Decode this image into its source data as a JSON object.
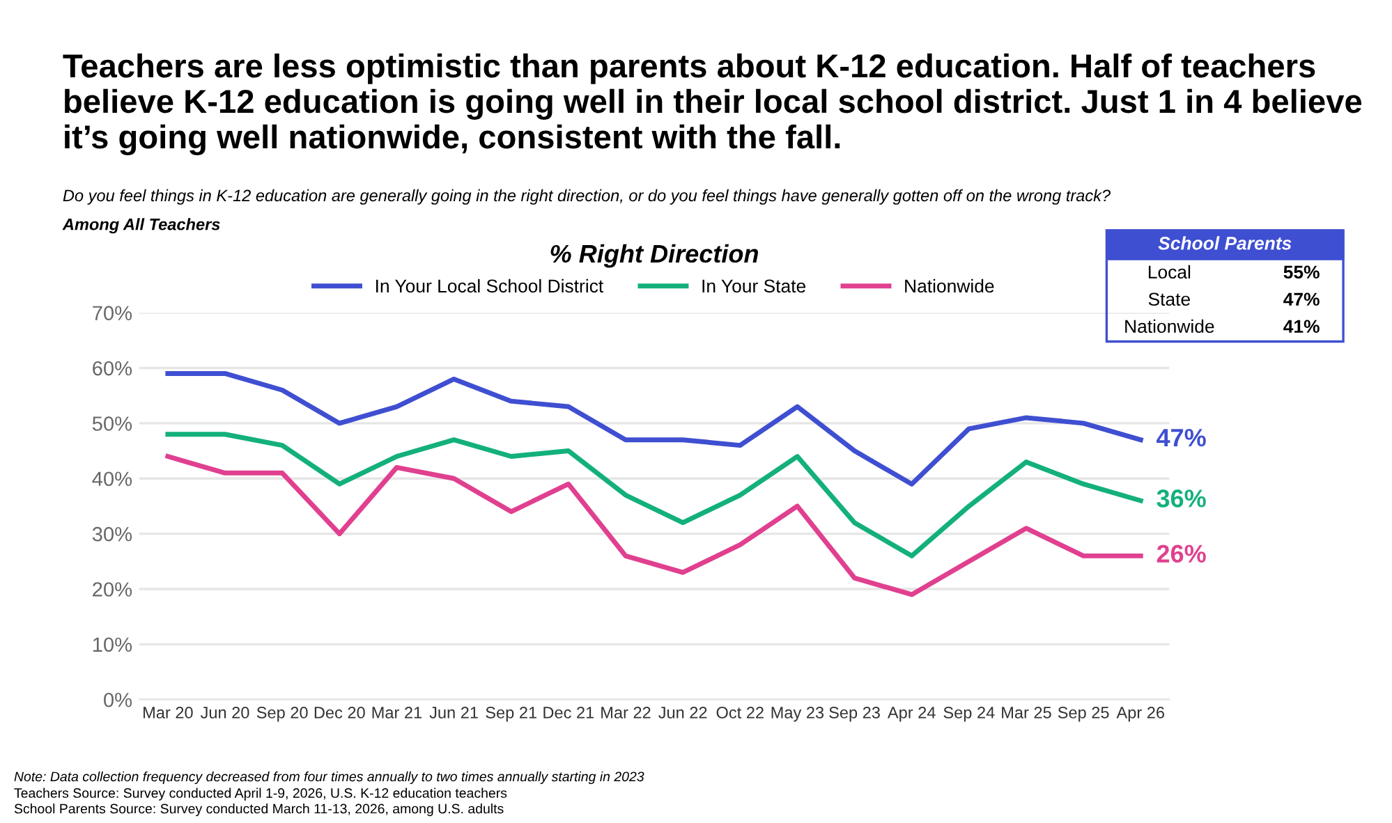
{
  "chart_data": {
    "type": "line",
    "title": "Teachers are less optimistic than parents about K-12 education. Half of teachers believe K-12 education is going well in their local school district. Just 1 in 4 believe it’s going well nationwide, consistent with the fall.",
    "subtitle": "% Right Direction",
    "annotations": [
      "Do you feel things in K-12 education are generally going in the right direction, or do you feel things have generally gotten off on the wrong track?",
      "Among All Teachers",
      "School Parents",
      "Local",
      "55%",
      "State",
      "47%",
      "Nationwide",
      "41%",
      "Note: Data collection frequency decreased from four times annually to two times annually starting in 2023",
      "Teachers Source: Survey conducted April 1-9, 2026, U.S. K-12 education teachers",
      "School Parents Source: Survey conducted March 11-13, 2026, among U.S. adults"
    ],
    "categories": [
      "Mar 20",
      "Jun 20",
      "Sep 20",
      "Dec 20",
      "Mar 21",
      "Jun 21",
      "Sep 21",
      "Dec 21",
      "Mar 22",
      "Jun 22",
      "Oct 22",
      "May 23",
      "Sep 23",
      "Apr 24",
      "Sep 24",
      "Mar 25",
      "Sep 25",
      "Apr 26"
    ],
    "series": [
      {
        "name": "In Your Local School District",
        "color": "#3f4fd1",
        "values": [
          59,
          59,
          56,
          50,
          53,
          58,
          54,
          53,
          47,
          47,
          46,
          53,
          45,
          39,
          49,
          51,
          50,
          47
        ],
        "value_labels": [
          null,
          null,
          null,
          null,
          null,
          null,
          null,
          null,
          null,
          null,
          null,
          null,
          null,
          null,
          null,
          null,
          null,
          "47%"
        ]
      },
      {
        "name": "In Your State",
        "color": "#13b07c",
        "values": [
          48,
          48,
          46,
          39,
          44,
          47,
          44,
          45,
          37,
          32,
          37,
          44,
          32,
          26,
          35,
          43,
          39,
          36
        ],
        "value_labels": [
          null,
          null,
          null,
          null,
          null,
          null,
          null,
          null,
          null,
          null,
          null,
          null,
          null,
          null,
          null,
          null,
          null,
          "36%"
        ]
      },
      {
        "name": "Nationwide",
        "color": "#e0408f",
        "values": [
          44,
          41,
          41,
          30,
          42,
          40,
          34,
          39,
          26,
          23,
          28,
          35,
          22,
          19,
          25,
          31,
          26,
          26
        ],
        "value_labels": [
          null,
          null,
          null,
          null,
          null,
          null,
          null,
          null,
          null,
          null,
          null,
          null,
          null,
          null,
          null,
          null,
          null,
          "26%"
        ]
      }
    ],
    "ylim": [
      0,
      70
    ],
    "yticks": [
      {
        "value": 0,
        "label": "0%"
      },
      {
        "value": 10,
        "label": "10%"
      },
      {
        "value": 20,
        "label": "20%"
      },
      {
        "value": 30,
        "label": "30%"
      },
      {
        "value": 40,
        "label": "40%"
      },
      {
        "value": 50,
        "label": "50%"
      },
      {
        "value": 60,
        "label": "60%"
      },
      {
        "value": 70,
        "label": "70%"
      }
    ],
    "grid": "y",
    "legend": "top",
    "marker": "none",
    "line_style": "solid"
  }
}
